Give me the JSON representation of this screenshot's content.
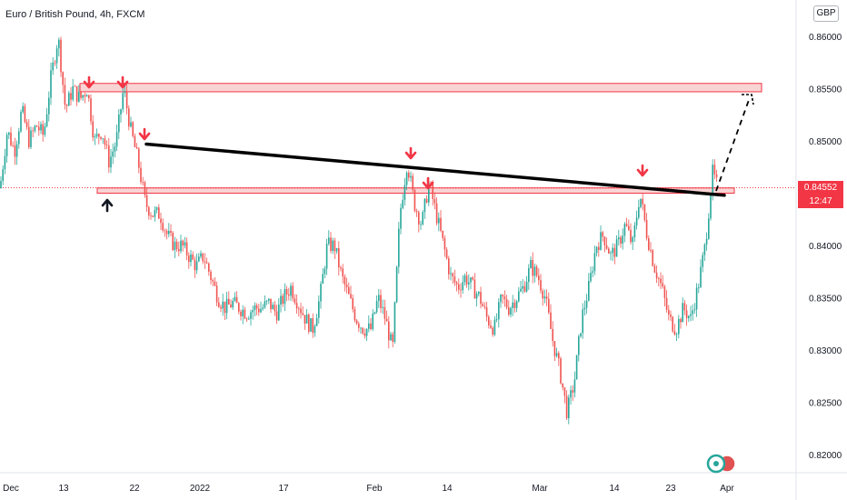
{
  "header": {
    "title": "Euro / British Pound, 4h, FXCM",
    "currency": "GBP"
  },
  "price_tag": {
    "price": "0.84552",
    "countdown": "12:47"
  },
  "colors": {
    "up": "#26a69a",
    "down": "#ef5350",
    "zone_fill": "#f7c5c5",
    "zone_border": "#f23645",
    "arrow_red": "#f23645",
    "arrow_black": "#131722",
    "trendline": "#000000"
  },
  "chart_data": {
    "type": "candlestick",
    "symbol": "EURGBP",
    "timeframe": "4h",
    "ylim": [
      0.818,
      0.8625
    ],
    "y_ticks": [
      0.86,
      0.855,
      0.85,
      0.845,
      0.84,
      0.835,
      0.83,
      0.825,
      0.82
    ],
    "y_tick_labels": [
      "0.86000",
      "0.85500",
      "0.85000",
      "0.84500",
      "0.84000",
      "0.83500",
      "0.83000",
      "0.82500",
      "0.82000"
    ],
    "x_tick_labels": [
      "Dec",
      "13",
      "22",
      "2022",
      "17",
      "Feb",
      "14",
      "Mar",
      "14",
      "23",
      "Apr"
    ],
    "current_price": 0.84552,
    "resistance_zone": [
      0.8547,
      0.8555
    ],
    "support_zone": [
      0.845,
      0.8455
    ],
    "trendline": {
      "from_price": 0.8497,
      "to_price": 0.8448
    },
    "projection_target": 0.8554,
    "close_path": [
      [
        0,
        0.8455
      ],
      [
        8,
        0.851
      ],
      [
        16,
        0.849
      ],
      [
        24,
        0.853
      ],
      [
        32,
        0.85
      ],
      [
        40,
        0.8515
      ],
      [
        48,
        0.8505
      ],
      [
        56,
        0.856
      ],
      [
        64,
        0.86
      ],
      [
        72,
        0.853
      ],
      [
        80,
        0.855
      ],
      [
        88,
        0.854
      ],
      [
        96,
        0.855
      ],
      [
        104,
        0.85
      ],
      [
        112,
        0.851
      ],
      [
        120,
        0.848
      ],
      [
        128,
        0.85
      ],
      [
        136,
        0.855
      ],
      [
        144,
        0.851
      ],
      [
        152,
        0.848
      ],
      [
        160,
        0.844
      ],
      [
        168,
        0.843
      ],
      [
        176,
        0.843
      ],
      [
        184,
        0.841
      ],
      [
        192,
        0.84
      ],
      [
        200,
        0.84
      ],
      [
        208,
        0.839
      ],
      [
        216,
        0.838
      ],
      [
        224,
        0.839
      ],
      [
        232,
        0.837
      ],
      [
        240,
        0.835
      ],
      [
        248,
        0.834
      ],
      [
        256,
        0.8345
      ],
      [
        264,
        0.834
      ],
      [
        272,
        0.8335
      ],
      [
        280,
        0.834
      ],
      [
        288,
        0.834
      ],
      [
        296,
        0.8345
      ],
      [
        304,
        0.8335
      ],
      [
        312,
        0.835
      ],
      [
        320,
        0.836
      ],
      [
        328,
        0.8345
      ],
      [
        336,
        0.833
      ],
      [
        344,
        0.832
      ],
      [
        352,
        0.835
      ],
      [
        360,
        0.84
      ],
      [
        368,
        0.84
      ],
      [
        376,
        0.837
      ],
      [
        384,
        0.835
      ],
      [
        392,
        0.833
      ],
      [
        400,
        0.832
      ],
      [
        408,
        0.832
      ],
      [
        416,
        0.835
      ],
      [
        424,
        0.833
      ],
      [
        432,
        0.83
      ],
      [
        440,
        0.843
      ],
      [
        448,
        0.848
      ],
      [
        456,
        0.844
      ],
      [
        464,
        0.842
      ],
      [
        472,
        0.846
      ],
      [
        480,
        0.843
      ],
      [
        488,
        0.84
      ],
      [
        496,
        0.837
      ],
      [
        504,
        0.836
      ],
      [
        512,
        0.837
      ],
      [
        520,
        0.836
      ],
      [
        528,
        0.835
      ],
      [
        536,
        0.833
      ],
      [
        544,
        0.832
      ],
      [
        552,
        0.835
      ],
      [
        560,
        0.834
      ],
      [
        568,
        0.835
      ],
      [
        576,
        0.836
      ],
      [
        584,
        0.838
      ],
      [
        592,
        0.837
      ],
      [
        600,
        0.835
      ],
      [
        608,
        0.831
      ],
      [
        616,
        0.828
      ],
      [
        624,
        0.824
      ],
      [
        632,
        0.827
      ],
      [
        640,
        0.833
      ],
      [
        648,
        0.836
      ],
      [
        656,
        0.84
      ],
      [
        664,
        0.841
      ],
      [
        672,
        0.839
      ],
      [
        680,
        0.84
      ],
      [
        688,
        0.842
      ],
      [
        696,
        0.84
      ],
      [
        704,
        0.845
      ],
      [
        712,
        0.841
      ],
      [
        720,
        0.838
      ],
      [
        728,
        0.836
      ],
      [
        736,
        0.833
      ],
      [
        744,
        0.832
      ],
      [
        752,
        0.834
      ],
      [
        760,
        0.833
      ],
      [
        768,
        0.836
      ],
      [
        776,
        0.84
      ],
      [
        784,
        0.847
      ],
      [
        790,
        0.8455
      ]
    ]
  }
}
